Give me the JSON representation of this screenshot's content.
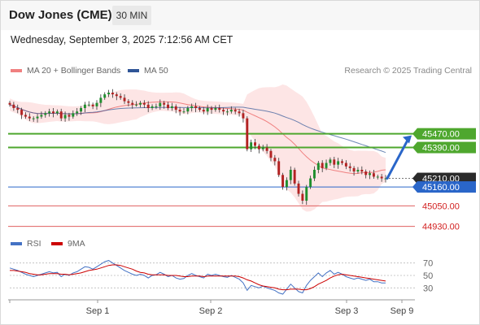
{
  "header": {
    "title": "Dow Jones (CME)",
    "interval": "30 MIN",
    "datetime": "Wednesday, September 3, 2025 7:12:56 AM CET"
  },
  "legend": {
    "ma20_label": "MA 20 + Bollinger Bands",
    "ma50_label": "MA 50",
    "copyright": "Research © 2025 Trading Central"
  },
  "colors": {
    "ma20": "#f08080",
    "ma50": "#2f5597",
    "bollinger_fill": "#fde0e0",
    "resistance": "#4ea72e",
    "support": "#e06060",
    "pivot": "#2a66c9",
    "current": "#222222",
    "rsi": "#4472c4",
    "rsi_ma": "#cc0000",
    "candle_up": "#1f8f2e",
    "candle_down": "#b22222"
  },
  "price_levels": [
    {
      "label": "45470.00",
      "value": 45470,
      "kind": "resistance"
    },
    {
      "label": "45390.00",
      "value": 45390,
      "kind": "resistance"
    },
    {
      "label": "45210.00",
      "value": 45210,
      "kind": "current"
    },
    {
      "label": "45160.00",
      "value": 45160,
      "kind": "pivot"
    },
    {
      "label": "45050.00",
      "value": 45050,
      "kind": "support"
    },
    {
      "label": "44930.00",
      "value": 44930,
      "kind": "support"
    }
  ],
  "rsi_panel": {
    "rsi_label": "RSI",
    "ma_label": "9MA",
    "ticks": [
      "70",
      "50",
      "30"
    ],
    "tick_values": [
      70,
      50,
      30
    ]
  },
  "x_axis": {
    "labels": [
      "Sep 1",
      "Sep 2",
      "Sep 3",
      "Sep 9"
    ]
  },
  "chart_data": {
    "type": "candlestick",
    "price_axis_range": [
      44900,
      45800
    ],
    "rsi_axis_range": [
      20,
      80
    ],
    "close_series": [
      45640,
      45620,
      45610,
      45580,
      45570,
      45560,
      45560,
      45570,
      45580,
      45590,
      45600,
      45590,
      45600,
      45560,
      45580,
      45570,
      45590,
      45600,
      45620,
      45640,
      45640,
      45630,
      45650,
      45680,
      45700,
      45710,
      45700,
      45690,
      45680,
      45660,
      45650,
      45640,
      45640,
      45650,
      45640,
      45620,
      45630,
      45630,
      45650,
      45640,
      45620,
      45630,
      45610,
      45600,
      45600,
      45620,
      45630,
      45620,
      45610,
      45600,
      45620,
      45610,
      45620,
      45610,
      45600,
      45600,
      45610,
      45600,
      45590,
      45560,
      45380,
      45420,
      45400,
      45380,
      45390,
      45370,
      45330,
      45310,
      45230,
      45160,
      45200,
      45260,
      45180,
      45120,
      45080,
      45160,
      45210,
      45260,
      45300,
      45270,
      45300,
      45320,
      45290,
      45310,
      45300,
      45280,
      45270,
      45250,
      45260,
      45250,
      45230,
      45240,
      45220,
      45220,
      45210,
      45210
    ],
    "rsi_values": [
      62,
      60,
      58,
      55,
      52,
      50,
      48,
      50,
      52,
      54,
      56,
      54,
      55,
      48,
      52,
      50,
      54,
      56,
      60,
      64,
      63,
      60,
      64,
      68,
      72,
      74,
      70,
      66,
      62,
      58,
      55,
      52,
      50,
      52,
      50,
      46,
      50,
      51,
      55,
      52,
      48,
      50,
      46,
      44,
      45,
      50,
      53,
      50,
      48,
      46,
      52,
      50,
      52,
      50,
      48,
      47,
      50,
      47,
      44,
      38,
      26,
      34,
      32,
      30,
      33,
      30,
      28,
      26,
      22,
      20,
      28,
      36,
      30,
      24,
      22,
      34,
      42,
      48,
      54,
      48,
      54,
      58,
      52,
      55,
      52,
      48,
      46,
      44,
      46,
      44,
      42,
      44,
      40,
      40,
      38,
      38
    ],
    "rsi_ma_values": [
      58,
      58,
      57,
      56,
      55,
      53,
      52,
      51,
      51,
      52,
      53,
      53,
      53,
      52,
      52,
      51,
      52,
      53,
      54,
      56,
      58,
      59,
      60,
      62,
      64,
      66,
      67,
      67,
      66,
      64,
      62,
      60,
      57,
      55,
      54,
      52,
      51,
      51,
      51,
      51,
      50,
      50,
      50,
      49,
      48,
      48,
      49,
      49,
      49,
      48,
      49,
      49,
      49,
      49,
      49,
      49,
      49,
      49,
      48,
      46,
      43,
      41,
      38,
      35,
      33,
      32,
      31,
      30,
      28,
      27,
      27,
      28,
      28,
      28,
      27,
      27,
      29,
      32,
      36,
      39,
      42,
      46,
      49,
      51,
      52,
      51,
      50,
      49,
      48,
      47,
      46,
      45,
      44,
      43,
      42,
      41
    ]
  }
}
